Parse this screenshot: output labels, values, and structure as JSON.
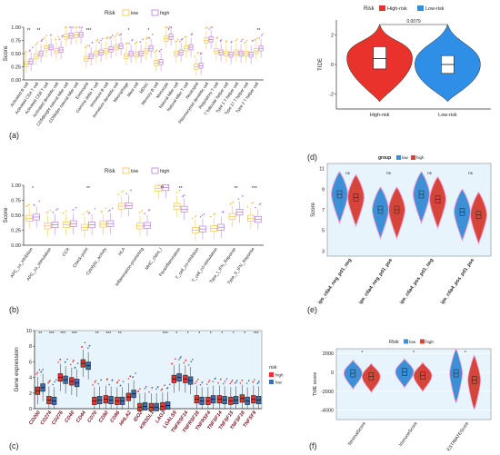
{
  "panel_labels": [
    "(a)",
    "(b)",
    "(c)",
    "(d)",
    "(e)",
    "(f)"
  ],
  "colors": {
    "low_pink": "#f3c24a",
    "high_purple": "#b57fd8",
    "high_risk_red": "#e8322b",
    "low_risk_blue": "#2f8fe6",
    "panel_bg": "#e8f4fb",
    "violin_red": "#d6453a",
    "violin_blue": "#3d8fd6",
    "violin_pink": "#f2a0d6"
  },
  "chart_data": [
    {
      "id": "a",
      "type": "box",
      "legend": {
        "title": "Risk",
        "entries": [
          "low",
          "high"
        ],
        "position": "top"
      },
      "ylabel": "Score",
      "ylim": [
        0,
        1.0
      ],
      "yticks": [
        "0.00",
        "0.25",
        "0.50",
        "0.75",
        "1.00"
      ],
      "categories": [
        "Activated B cell",
        "Activated CD4 T cell",
        "Activated CD8 T cell",
        "Activated dendritic cell",
        "CD56bright natural killer cell",
        "CD56dim natural killer cell",
        "Eosinophil",
        "Gamma delta T cell",
        "Immature B cell",
        "Immature dendritic cell",
        "Macrophage",
        "Mast cell",
        "MDSC",
        "Memory B cell",
        "Monocyte",
        "Natural killer cell",
        "Natural killer T cell",
        "Neutrophil",
        "Plasmacytoid dendritic cell",
        "Regulatory T cell",
        "T follicular helper cell",
        "Type 1 T helper cell",
        "Type 17 T helper cell",
        "Type 2 T helper cell"
      ],
      "significance": [
        "**",
        "**",
        "",
        "",
        "",
        "",
        "***",
        "",
        "",
        "",
        "*",
        "",
        "*",
        "",
        "*",
        "",
        "",
        "",
        "",
        "",
        "",
        "",
        "",
        "**"
      ],
      "series": [
        {
          "name": "low",
          "values": [
            0.3,
            0.45,
            0.6,
            0.55,
            0.82,
            0.85,
            0.4,
            0.5,
            0.55,
            0.62,
            0.45,
            0.48,
            0.55,
            0.32,
            0.78,
            0.5,
            0.6,
            0.25,
            0.75,
            0.55,
            0.5,
            0.52,
            0.5,
            0.55
          ]
        },
        {
          "name": "high",
          "values": [
            0.35,
            0.5,
            0.62,
            0.57,
            0.84,
            0.86,
            0.45,
            0.52,
            0.58,
            0.64,
            0.5,
            0.5,
            0.6,
            0.34,
            0.82,
            0.52,
            0.62,
            0.27,
            0.77,
            0.52,
            0.48,
            0.5,
            0.48,
            0.6
          ]
        }
      ]
    },
    {
      "id": "b",
      "type": "box",
      "legend": {
        "title": "Risk",
        "entries": [
          "low",
          "high"
        ],
        "position": "top"
      },
      "ylabel": "Score",
      "ylim": [
        0,
        1.0
      ],
      "yticks": [
        "0.00",
        "0.25",
        "0.50",
        "0.75",
        "1.00"
      ],
      "categories": [
        "APC_co_inhibition",
        "APC_co_stimulation",
        "CCR",
        "Check-point",
        "Cytolytic_activity",
        "HLA",
        "Inflammation-promoting",
        "MHC_class_I",
        "Parainflammation",
        "T_cell_co-inhibition",
        "T_cell_co-stimulation",
        "Type_I_IFN_Reponse",
        "Type_II_IFN_Reponse"
      ],
      "significance": [
        "*",
        "",
        "",
        "**",
        "",
        "",
        "",
        "**",
        "**",
        "",
        "",
        "**",
        "***"
      ],
      "series": [
        {
          "name": "low",
          "values": [
            0.45,
            0.32,
            0.34,
            0.3,
            0.35,
            0.65,
            0.32,
            0.95,
            0.65,
            0.25,
            0.28,
            0.48,
            0.45
          ]
        },
        {
          "name": "high",
          "values": [
            0.47,
            0.34,
            0.36,
            0.34,
            0.36,
            0.66,
            0.33,
            0.96,
            0.6,
            0.27,
            0.3,
            0.55,
            0.43
          ]
        }
      ]
    },
    {
      "id": "c",
      "type": "box",
      "legend": {
        "title": "risk",
        "entries": [
          "high",
          "low"
        ],
        "position": "right"
      },
      "ylabel": "Gene expression",
      "ylim": [
        0,
        10
      ],
      "yticks": [
        "0",
        "2",
        "4",
        "6",
        "8",
        "10"
      ],
      "categories": [
        "CD200",
        "CD274",
        "CD276",
        "CD40",
        "CD44",
        "CD70",
        "CD80",
        "CD86",
        "HHLA2",
        "IDO2",
        "KIR3DL1",
        "LAG3",
        "LGALS9",
        "TNFRSF14",
        "TNFRSF18",
        "TNFRSF4",
        "TNFSF14",
        "TNFSF15",
        "TNFSF18",
        "TNFSF9"
      ],
      "significance": [
        "**",
        "***",
        "***",
        "***",
        "",
        "**",
        "***",
        "**",
        "",
        "",
        "",
        "***",
        "*",
        "*",
        "*",
        "*",
        "*",
        "*",
        "*",
        "***"
      ],
      "series": [
        {
          "name": "high",
          "values": [
            2.3,
            1.1,
            4.0,
            3.5,
            5.8,
            1.0,
            1.2,
            1.0,
            1.5,
            0.2,
            0.2,
            0.3,
            3.8,
            3.8,
            1.2,
            1.0,
            1.2,
            1.0,
            1.3,
            1.2
          ]
        },
        {
          "name": "low",
          "values": [
            2.7,
            1.0,
            3.7,
            3.3,
            5.5,
            1.1,
            1.1,
            1.0,
            1.9,
            0.3,
            0.2,
            0.4,
            4.0,
            3.6,
            1.0,
            1.2,
            1.1,
            1.1,
            1.0,
            1.1
          ]
        }
      ]
    },
    {
      "id": "d",
      "type": "violin",
      "legend": {
        "title": "Risk",
        "entries": [
          "High-risk",
          "Low-risk"
        ],
        "position": "top"
      },
      "ylabel": "TIDE",
      "ylim": [
        -3,
        3
      ],
      "yticks": [
        "-2",
        "0",
        "2"
      ],
      "categories": [
        "High-risk",
        "Low-risk"
      ],
      "annotation": "0.0079",
      "series": [
        {
          "name": "High-risk",
          "median": 0.4,
          "q1": -0.3,
          "q3": 1.2
        },
        {
          "name": "Low-risk",
          "median": 0.0,
          "q1": -0.6,
          "q3": 0.6
        }
      ]
    },
    {
      "id": "e",
      "type": "violin",
      "legend": {
        "title": "group",
        "entries": [
          "low",
          "high"
        ],
        "position": "top"
      },
      "ylabel": "Score",
      "ylim": [
        2.5,
        11.5
      ],
      "yticks": [
        "3",
        "5",
        "7",
        "9",
        "11"
      ],
      "categories": [
        "ips_ctla4_neg_pd1_neg",
        "ips_ctla4_neg_pd1_pos",
        "ips_ctla4_pos_pd1_neg",
        "ips_ctla4_pos_pd1_pos"
      ],
      "significance": [
        "ns",
        "ns",
        "ns",
        "ns"
      ],
      "series": [
        {
          "name": "low",
          "medians": [
            8.5,
            7.0,
            8.5,
            6.8
          ]
        },
        {
          "name": "high",
          "medians": [
            8.2,
            7.0,
            8.0,
            6.5
          ]
        }
      ]
    },
    {
      "id": "f",
      "type": "violin",
      "legend": {
        "title": "Risk",
        "entries": [
          "low",
          "high"
        ],
        "position": "top"
      },
      "ylabel": "TME score",
      "ylim": [
        -5000,
        2500
      ],
      "yticks": [
        "-4000",
        "-2000",
        "0",
        "2000"
      ],
      "categories": [
        "StromalScore",
        "ImmuneScore",
        "ESTIMATEScore"
      ],
      "significance": [
        "*",
        "*",
        "*"
      ],
      "series": [
        {
          "name": "low",
          "medians": [
            -100,
            50,
            -100
          ]
        },
        {
          "name": "high",
          "medians": [
            -450,
            -350,
            -800
          ]
        }
      ]
    }
  ]
}
